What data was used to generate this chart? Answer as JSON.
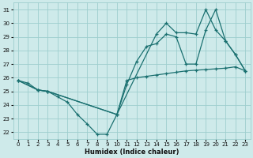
{
  "xlabel": "Humidex (Indice chaleur)",
  "bg_color": "#ceeaea",
  "grid_color": "#9ecece",
  "line_color": "#1a7070",
  "xlim": [
    -0.5,
    23.5
  ],
  "ylim": [
    21.5,
    31.5
  ],
  "yticks": [
    22,
    23,
    24,
    25,
    26,
    27,
    28,
    29,
    30,
    31
  ],
  "xticks": [
    0,
    1,
    2,
    3,
    4,
    5,
    6,
    7,
    8,
    9,
    10,
    11,
    12,
    13,
    14,
    15,
    16,
    17,
    18,
    19,
    20,
    21,
    22,
    23
  ],
  "line1_x": [
    0,
    1,
    2,
    3,
    4,
    5,
    6,
    7,
    8,
    9,
    10,
    11,
    12,
    13,
    14,
    15,
    16,
    17,
    18,
    19,
    20,
    21,
    22,
    23
  ],
  "line1_y": [
    25.8,
    25.6,
    25.1,
    25.0,
    24.6,
    24.2,
    23.3,
    22.6,
    21.85,
    21.85,
    23.3,
    25.8,
    26.0,
    26.1,
    26.2,
    26.3,
    26.4,
    26.5,
    26.55,
    26.6,
    26.65,
    26.7,
    26.8,
    26.5
  ],
  "line2_x": [
    0,
    2,
    3,
    10,
    11,
    12,
    13,
    14,
    15,
    16,
    17,
    18,
    19,
    20,
    21,
    22,
    23
  ],
  "line2_y": [
    25.8,
    25.1,
    25.0,
    23.3,
    25.5,
    27.2,
    28.3,
    28.5,
    29.2,
    29.0,
    27.0,
    27.0,
    29.5,
    31.0,
    28.7,
    27.7,
    26.5
  ],
  "line3_x": [
    0,
    2,
    3,
    10,
    14,
    15,
    16,
    17,
    18,
    19,
    20,
    21,
    22,
    23
  ],
  "line3_y": [
    25.8,
    25.1,
    25.0,
    23.3,
    29.2,
    30.0,
    29.3,
    29.3,
    29.2,
    31.0,
    29.5,
    28.7,
    27.7,
    26.5
  ]
}
